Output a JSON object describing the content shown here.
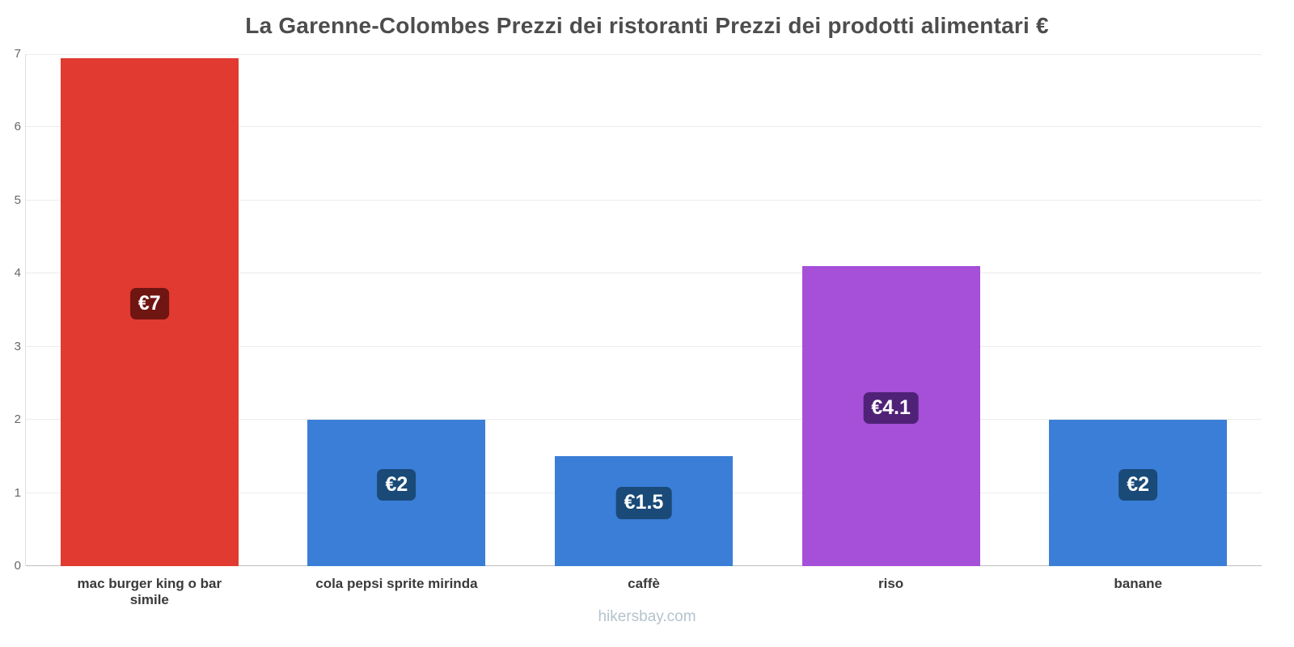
{
  "title": "La Garenne-Colombes Prezzi dei ristoranti Prezzi dei prodotti alimentari €",
  "footer": "hikersbay.com",
  "chart_data": {
    "type": "bar",
    "title": "La Garenne-Colombes Prezzi dei ristoranti Prezzi dei prodotti alimentari €",
    "categories": [
      "mac burger king o bar simile",
      "cola pepsi sprite mirinda",
      "caffè",
      "riso",
      "banane"
    ],
    "values": [
      6.95,
      2,
      1.5,
      4.1,
      2
    ],
    "value_labels": [
      "€7",
      "€2",
      "€1.5",
      "€4.1",
      "€2"
    ],
    "bar_colors": [
      "#e13a30",
      "#3b7ed8",
      "#3b7ed8",
      "#a64fd8",
      "#3b7ed8"
    ],
    "label_colors": [
      "#6f1512",
      "#1a4a78",
      "#1a4a78",
      "#4f2277",
      "#1a4a78"
    ],
    "xlabel": "",
    "ylabel": "",
    "ylim": [
      0,
      7
    ],
    "yticks": [
      "0",
      "1",
      "2",
      "3",
      "4",
      "5",
      "6",
      "7"
    ],
    "grid": true,
    "legend": false,
    "currency": "€"
  }
}
